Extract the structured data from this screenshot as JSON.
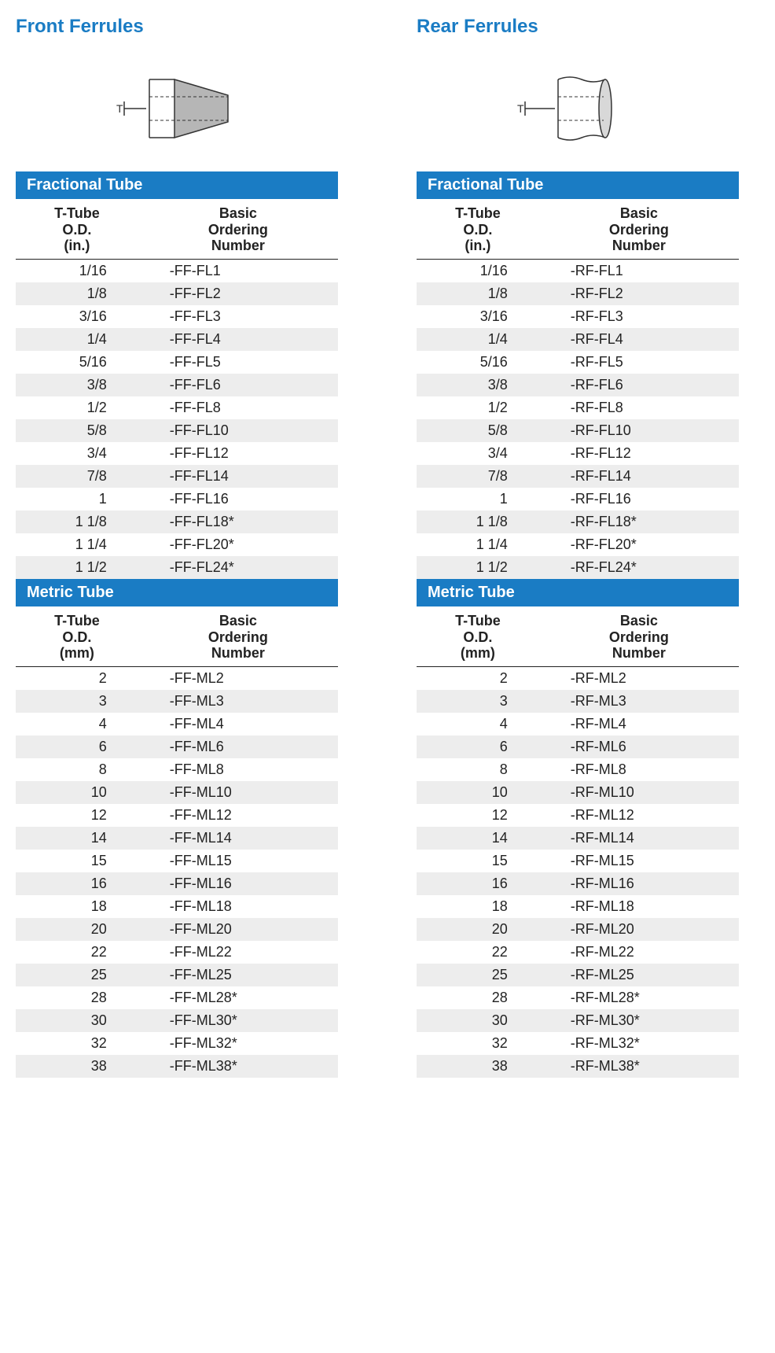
{
  "colors": {
    "heading": "#1a7cc4",
    "band_bg": "#1a7cc4",
    "band_fg": "#ffffff",
    "text": "#222222",
    "row_even": "#ededed",
    "row_odd": "#ffffff",
    "rule": "#222222"
  },
  "typography": {
    "heading_fontsize": 24,
    "band_fontsize": 20,
    "header_fontsize": 18,
    "cell_fontsize": 18
  },
  "front": {
    "title": "Front Ferrules",
    "fractional": {
      "band": "Fractional Tube",
      "headers": {
        "col1": "T-Tube\nO.D.\n(in.)",
        "col2": "Basic\nOrdering\nNumber"
      },
      "rows": [
        {
          "od": "1/16",
          "num": "-FF-FL1"
        },
        {
          "od": "1/8",
          "num": "-FF-FL2"
        },
        {
          "od": "3/16",
          "num": "-FF-FL3"
        },
        {
          "od": "1/4",
          "num": "-FF-FL4"
        },
        {
          "od": "5/16",
          "num": "-FF-FL5"
        },
        {
          "od": "3/8",
          "num": "-FF-FL6"
        },
        {
          "od": "1/2",
          "num": "-FF-FL8"
        },
        {
          "od": "5/8",
          "num": "-FF-FL10"
        },
        {
          "od": "3/4",
          "num": "-FF-FL12"
        },
        {
          "od": "7/8",
          "num": "-FF-FL14"
        },
        {
          "od": "1",
          "num": "-FF-FL16"
        },
        {
          "od": "1 1/8",
          "num": "-FF-FL18*"
        },
        {
          "od": "1 1/4",
          "num": "-FF-FL20*"
        },
        {
          "od": "1 1/2",
          "num": "-FF-FL24*"
        }
      ]
    },
    "metric": {
      "band": "Metric Tube",
      "headers": {
        "col1": "T-Tube\nO.D.\n(mm)",
        "col2": "Basic\nOrdering\nNumber"
      },
      "rows": [
        {
          "od": "2",
          "num": "-FF-ML2"
        },
        {
          "od": "3",
          "num": "-FF-ML3"
        },
        {
          "od": "4",
          "num": "-FF-ML4"
        },
        {
          "od": "6",
          "num": "-FF-ML6"
        },
        {
          "od": "8",
          "num": "-FF-ML8"
        },
        {
          "od": "10",
          "num": "-FF-ML10"
        },
        {
          "od": "12",
          "num": "-FF-ML12"
        },
        {
          "od": "14",
          "num": "-FF-ML14"
        },
        {
          "od": "15",
          "num": "-FF-ML15"
        },
        {
          "od": "16",
          "num": "-FF-ML16"
        },
        {
          "od": "18",
          "num": "-FF-ML18"
        },
        {
          "od": "20",
          "num": "-FF-ML20"
        },
        {
          "od": "22",
          "num": "-FF-ML22"
        },
        {
          "od": "25",
          "num": "-FF-ML25"
        },
        {
          "od": "28",
          "num": "-FF-ML28*"
        },
        {
          "od": "30",
          "num": "-FF-ML30*"
        },
        {
          "od": "32",
          "num": "-FF-ML32*"
        },
        {
          "od": "38",
          "num": "-FF-ML38*"
        }
      ]
    }
  },
  "rear": {
    "title": "Rear Ferrules",
    "fractional": {
      "band": "Fractional Tube",
      "headers": {
        "col1": "T-Tube\nO.D.\n(in.)",
        "col2": "Basic\nOrdering\nNumber"
      },
      "rows": [
        {
          "od": "1/16",
          "num": "-RF-FL1"
        },
        {
          "od": "1/8",
          "num": "-RF-FL2"
        },
        {
          "od": "3/16",
          "num": "-RF-FL3"
        },
        {
          "od": "1/4",
          "num": "-RF-FL4"
        },
        {
          "od": "5/16",
          "num": "-RF-FL5"
        },
        {
          "od": "3/8",
          "num": "-RF-FL6"
        },
        {
          "od": "1/2",
          "num": "-RF-FL8"
        },
        {
          "od": "5/8",
          "num": "-RF-FL10"
        },
        {
          "od": "3/4",
          "num": "-RF-FL12"
        },
        {
          "od": "7/8",
          "num": "-RF-FL14"
        },
        {
          "od": "1",
          "num": "-RF-FL16"
        },
        {
          "od": "1 1/8",
          "num": "-RF-FL18*"
        },
        {
          "od": "1 1/4",
          "num": "-RF-FL20*"
        },
        {
          "od": "1 1/2",
          "num": "-RF-FL24*"
        }
      ]
    },
    "metric": {
      "band": "Metric Tube",
      "headers": {
        "col1": "T-Tube\nO.D.\n(mm)",
        "col2": "Basic\nOrdering\nNumber"
      },
      "rows": [
        {
          "od": "2",
          "num": "-RF-ML2"
        },
        {
          "od": "3",
          "num": "-RF-ML3"
        },
        {
          "od": "4",
          "num": "-RF-ML4"
        },
        {
          "od": "6",
          "num": "-RF-ML6"
        },
        {
          "od": "8",
          "num": "-RF-ML8"
        },
        {
          "od": "10",
          "num": "-RF-ML10"
        },
        {
          "od": "12",
          "num": "-RF-ML12"
        },
        {
          "od": "14",
          "num": "-RF-ML14"
        },
        {
          "od": "15",
          "num": "-RF-ML15"
        },
        {
          "od": "16",
          "num": "-RF-ML16"
        },
        {
          "od": "18",
          "num": "-RF-ML18"
        },
        {
          "od": "20",
          "num": "-RF-ML20"
        },
        {
          "od": "22",
          "num": "-RF-ML22"
        },
        {
          "od": "25",
          "num": "-RF-ML25"
        },
        {
          "od": "28",
          "num": "-RF-ML28*"
        },
        {
          "od": "30",
          "num": "-RF-ML30*"
        },
        {
          "od": "32",
          "num": "-RF-ML32*"
        },
        {
          "od": "38",
          "num": "-RF-ML38*"
        }
      ]
    }
  }
}
